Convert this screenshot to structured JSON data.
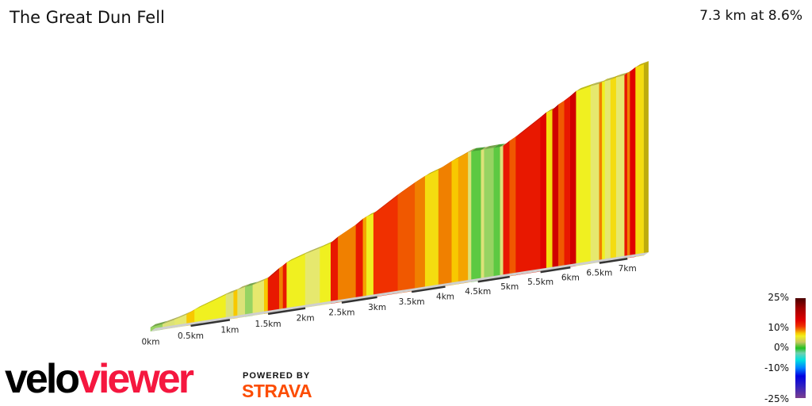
{
  "header": {
    "title": "The Great Dun Fell",
    "summary": "7.3 km at 8.6%"
  },
  "legend": {
    "labels": [
      "25%",
      "10%",
      "0%",
      "-10%",
      "-25%"
    ]
  },
  "branding": {
    "logo_text_1": "velo",
    "logo_text_2": "viewer",
    "powered_by": "POWERED BY",
    "strava": "STRAVA"
  },
  "chart_data": {
    "type": "area",
    "title": "The Great Dun Fell",
    "xlabel": "",
    "ylabel": "",
    "x_unit": "km",
    "xlim": [
      0,
      7.3
    ],
    "tick_labels": [
      "0km",
      "0.5km",
      "1km",
      "1.5km",
      "2km",
      "2.5km",
      "3km",
      "3.5km",
      "4km",
      "4.5km",
      "5km",
      "5.5km",
      "6km",
      "6.5km",
      "7km"
    ],
    "ticks": [
      0,
      0.5,
      1,
      1.5,
      2,
      2.5,
      3,
      3.5,
      4,
      4.5,
      5,
      5.5,
      6,
      6.5,
      7
    ],
    "color_scale": {
      "min": -25,
      "max": 25,
      "unit": "%"
    },
    "segments": [
      {
        "from": 0,
        "to": 0.15,
        "gradient": 2
      },
      {
        "from": 0.15,
        "to": 0.3,
        "gradient": 4
      },
      {
        "from": 0.3,
        "to": 0.45,
        "gradient": 5
      },
      {
        "from": 0.45,
        "to": 0.55,
        "gradient": 8
      },
      {
        "from": 0.55,
        "to": 0.95,
        "gradient": 6
      },
      {
        "from": 0.95,
        "to": 1.05,
        "gradient": 4
      },
      {
        "from": 1.05,
        "to": 1.1,
        "gradient": 8
      },
      {
        "from": 1.1,
        "to": 1.2,
        "gradient": 4
      },
      {
        "from": 1.2,
        "to": 1.3,
        "gradient": 2
      },
      {
        "from": 1.3,
        "to": 1.45,
        "gradient": 5
      },
      {
        "from": 1.45,
        "to": 1.5,
        "gradient": 8
      },
      {
        "from": 1.5,
        "to": 1.65,
        "gradient": 13
      },
      {
        "from": 1.65,
        "to": 1.7,
        "gradient": 10
      },
      {
        "from": 1.7,
        "to": 1.75,
        "gradient": 13
      },
      {
        "from": 1.75,
        "to": 2.0,
        "gradient": 6
      },
      {
        "from": 2.0,
        "to": 2.2,
        "gradient": 5
      },
      {
        "from": 2.2,
        "to": 2.35,
        "gradient": 6
      },
      {
        "from": 2.35,
        "to": 2.45,
        "gradient": 13
      },
      {
        "from": 2.45,
        "to": 2.7,
        "gradient": 10
      },
      {
        "from": 2.7,
        "to": 2.8,
        "gradient": 13
      },
      {
        "from": 2.8,
        "to": 2.85,
        "gradient": 9
      },
      {
        "from": 2.85,
        "to": 2.95,
        "gradient": 6
      },
      {
        "from": 2.95,
        "to": 3.3,
        "gradient": 12
      },
      {
        "from": 3.3,
        "to": 3.55,
        "gradient": 11
      },
      {
        "from": 3.55,
        "to": 3.7,
        "gradient": 10
      },
      {
        "from": 3.7,
        "to": 3.9,
        "gradient": 7
      },
      {
        "from": 3.9,
        "to": 4.1,
        "gradient": 10
      },
      {
        "from": 4.1,
        "to": 4.2,
        "gradient": 8
      },
      {
        "from": 4.2,
        "to": 4.35,
        "gradient": 9
      },
      {
        "from": 4.35,
        "to": 4.4,
        "gradient": 4
      },
      {
        "from": 4.4,
        "to": 4.55,
        "gradient": 1
      },
      {
        "from": 4.55,
        "to": 4.6,
        "gradient": 4
      },
      {
        "from": 4.6,
        "to": 4.75,
        "gradient": 2
      },
      {
        "from": 4.75,
        "to": 4.85,
        "gradient": 1
      },
      {
        "from": 4.85,
        "to": 4.9,
        "gradient": 4
      },
      {
        "from": 4.9,
        "to": 5.0,
        "gradient": 13
      },
      {
        "from": 5.0,
        "to": 5.1,
        "gradient": 11
      },
      {
        "from": 5.1,
        "to": 5.5,
        "gradient": 13
      },
      {
        "from": 5.5,
        "to": 5.6,
        "gradient": 14
      },
      {
        "from": 5.6,
        "to": 5.7,
        "gradient": 7
      },
      {
        "from": 5.7,
        "to": 5.8,
        "gradient": 15
      },
      {
        "from": 5.8,
        "to": 5.9,
        "gradient": 11
      },
      {
        "from": 5.9,
        "to": 6.0,
        "gradient": 13
      },
      {
        "from": 6.0,
        "to": 6.1,
        "gradient": 15
      },
      {
        "from": 6.1,
        "to": 6.35,
        "gradient": 6
      },
      {
        "from": 6.35,
        "to": 6.5,
        "gradient": 5
      },
      {
        "from": 6.5,
        "to": 6.55,
        "gradient": 10
      },
      {
        "from": 6.55,
        "to": 6.6,
        "gradient": 6
      },
      {
        "from": 6.6,
        "to": 6.7,
        "gradient": 5
      },
      {
        "from": 6.7,
        "to": 6.8,
        "gradient": 7
      },
      {
        "from": 6.8,
        "to": 6.95,
        "gradient": 5
      },
      {
        "from": 6.95,
        "to": 7.0,
        "gradient": 13
      },
      {
        "from": 7.0,
        "to": 7.05,
        "gradient": 10
      },
      {
        "from": 7.05,
        "to": 7.15,
        "gradient": 14
      },
      {
        "from": 7.15,
        "to": 7.3,
        "gradient": 7
      }
    ]
  }
}
